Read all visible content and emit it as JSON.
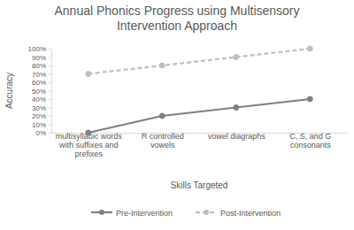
{
  "chart_data": {
    "type": "line",
    "title": "Annual Phonics Progress using Multisensory Intervention Approach",
    "x_label": "Skills Targeted",
    "y_label": "Accuracy",
    "categories": [
      "multisyllabic words with suffixes and prefixes",
      "R controlled vowels",
      "vowel diagraphs",
      "C, S, and G consonants"
    ],
    "series": [
      {
        "name": "Pre-Intervention",
        "color": "#808080",
        "marker": "circle",
        "line_style": "solid",
        "values": [
          0,
          20,
          30,
          40
        ]
      },
      {
        "name": "Post-Intervention",
        "color": "#bfbfbf",
        "marker": "circle",
        "line_style": "dashed",
        "values": [
          70,
          80,
          90,
          100
        ]
      }
    ],
    "ylim": [
      0,
      100
    ],
    "yticks": [
      {
        "value": 0,
        "label": "0%"
      },
      {
        "value": 10,
        "label": "10%"
      },
      {
        "value": 20,
        "label": "20%"
      },
      {
        "value": 30,
        "label": "30%"
      },
      {
        "value": 40,
        "label": "40%"
      },
      {
        "value": 50,
        "label": "50%"
      },
      {
        "value": 60,
        "label": "60%"
      },
      {
        "value": 70,
        "label": "70%"
      },
      {
        "value": 80,
        "label": "80%"
      },
      {
        "value": 90,
        "label": "90%"
      },
      {
        "value": 100,
        "label": "100%"
      }
    ],
    "grid": false,
    "legend": "bottom"
  }
}
